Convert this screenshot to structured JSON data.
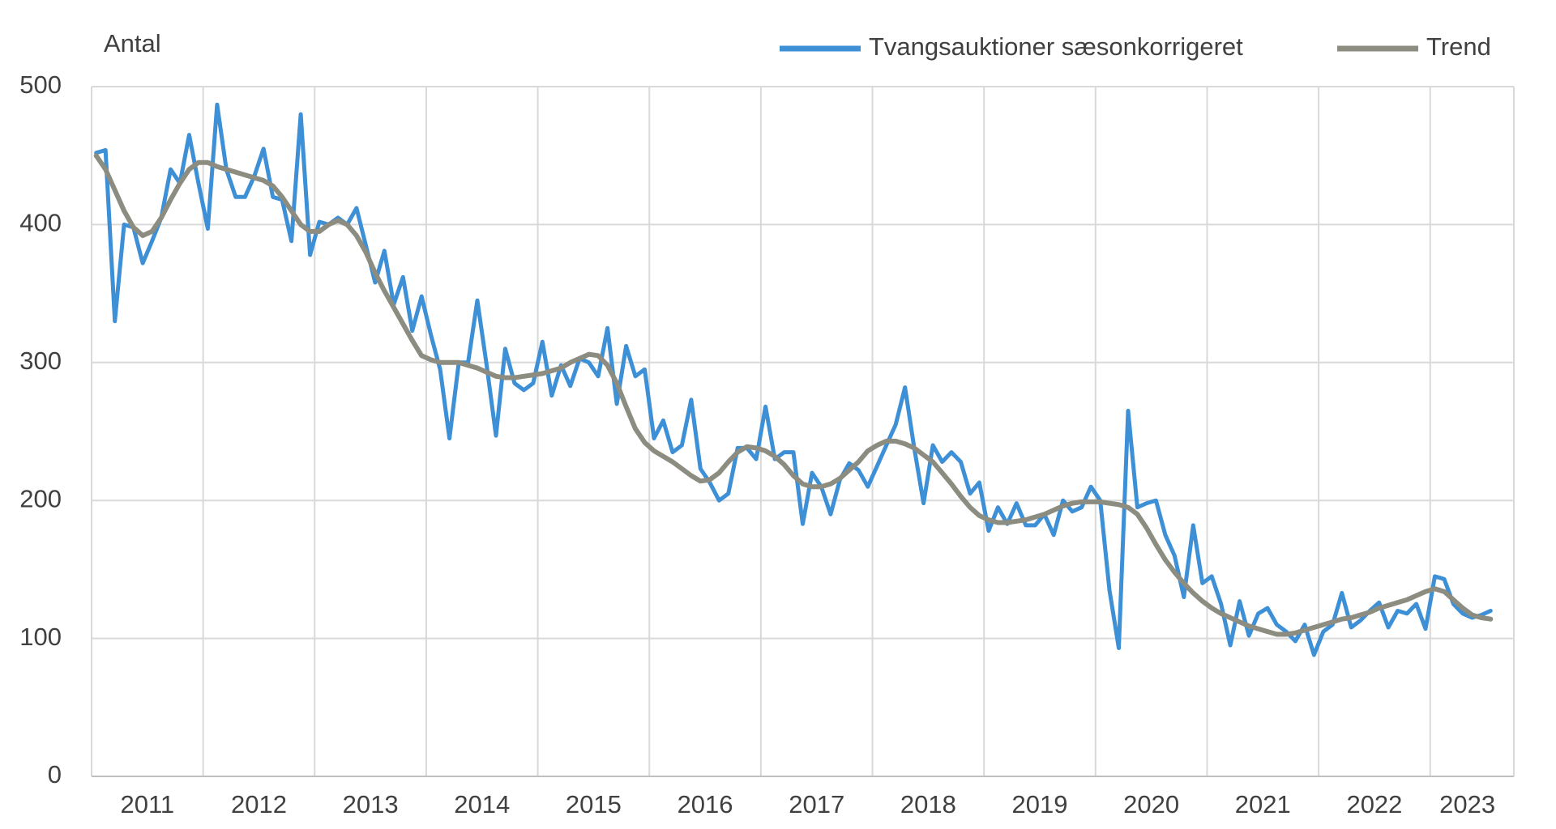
{
  "chart_data": {
    "type": "line",
    "y_axis_label": "Antal",
    "categories": [
      null,
      null,
      null,
      null,
      null,
      "2011",
      null,
      null,
      null,
      null,
      null,
      null,
      null,
      null,
      null,
      null,
      null,
      "2012",
      null,
      null,
      null,
      null,
      null,
      null,
      null,
      null,
      null,
      null,
      null,
      "2013",
      null,
      null,
      null,
      null,
      null,
      null,
      null,
      null,
      null,
      null,
      null,
      "2014",
      null,
      null,
      null,
      null,
      null,
      null,
      null,
      null,
      null,
      null,
      null,
      "2015",
      null,
      null,
      null,
      null,
      null,
      null,
      null,
      null,
      null,
      null,
      null,
      "2016",
      null,
      null,
      null,
      null,
      null,
      null,
      null,
      null,
      null,
      null,
      null,
      "2017",
      null,
      null,
      null,
      null,
      null,
      null,
      null,
      null,
      null,
      null,
      null,
      "2018",
      null,
      null,
      null,
      null,
      null,
      null,
      null,
      null,
      null,
      null,
      null,
      "2019",
      null,
      null,
      null,
      null,
      null,
      null,
      null,
      null,
      null,
      null,
      null,
      "2020",
      null,
      null,
      null,
      null,
      null,
      null,
      null,
      null,
      null,
      null,
      null,
      "2021",
      null,
      null,
      null,
      null,
      null,
      null,
      null,
      null,
      null,
      null,
      null,
      "2022",
      null,
      null,
      null,
      null,
      null,
      null,
      null,
      null,
      null,
      "2023",
      null,
      null,
      null,
      null,
      null
    ],
    "series": [
      {
        "name": "Tvangsauktioner sæsonkorrigeret",
        "color": "#3d8fd6",
        "values": [
          452,
          454,
          330,
          400,
          398,
          372,
          388,
          405,
          440,
          430,
          465,
          430,
          397,
          487,
          440,
          420,
          420,
          435,
          455,
          420,
          418,
          388,
          480,
          378,
          402,
          400,
          405,
          400,
          412,
          385,
          358,
          381,
          342,
          362,
          323,
          348,
          320,
          295,
          245,
          300,
          300,
          345,
          298,
          247,
          310,
          285,
          280,
          285,
          315,
          276,
          298,
          283,
          303,
          300,
          290,
          325,
          270,
          312,
          290,
          295,
          245,
          258,
          235,
          240,
          273,
          223,
          213,
          200,
          205,
          238,
          238,
          230,
          268,
          230,
          235,
          235,
          183,
          220,
          210,
          190,
          215,
          227,
          222,
          210,
          225,
          240,
          255,
          282,
          238,
          198,
          240,
          228,
          235,
          228,
          205,
          213,
          178,
          195,
          183,
          198,
          182,
          182,
          190,
          175,
          200,
          192,
          195,
          210,
          200,
          135,
          93,
          265,
          195,
          198,
          200,
          175,
          160,
          130,
          182,
          140,
          145,
          125,
          95,
          127,
          102,
          118,
          122,
          110,
          105,
          98,
          110,
          88,
          105,
          110,
          133,
          108,
          113,
          120,
          126,
          108,
          120,
          118,
          125,
          107,
          145,
          143,
          125,
          118,
          115,
          117,
          120,
          null,
          null
        ]
      },
      {
        "name": "Trend",
        "color": "#8c8c80",
        "values": [
          450,
          440,
          425,
          410,
          398,
          392,
          395,
          405,
          418,
          430,
          440,
          445,
          445,
          442,
          440,
          438,
          436,
          434,
          432,
          428,
          420,
          410,
          400,
          395,
          395,
          400,
          403,
          400,
          392,
          380,
          365,
          352,
          340,
          328,
          316,
          305,
          302,
          300,
          300,
          300,
          298,
          296,
          293,
          290,
          289,
          289,
          290,
          291,
          292,
          294,
          296,
          300,
          303,
          306,
          305,
          298,
          285,
          268,
          252,
          242,
          236,
          232,
          228,
          223,
          218,
          214,
          215,
          220,
          228,
          235,
          239,
          238,
          236,
          232,
          226,
          218,
          212,
          210,
          210,
          212,
          216,
          222,
          228,
          236,
          240,
          243,
          243,
          241,
          238,
          233,
          228,
          220,
          212,
          203,
          195,
          189,
          186,
          184,
          184,
          185,
          186,
          188,
          190,
          193,
          196,
          198,
          199,
          199,
          199,
          198,
          197,
          195,
          190,
          180,
          168,
          157,
          148,
          140,
          133,
          127,
          122,
          118,
          115,
          112,
          109,
          107,
          105,
          103,
          103,
          104,
          106,
          108,
          110,
          112,
          114,
          115,
          117,
          119,
          122,
          124,
          126,
          128,
          131,
          134,
          136,
          134,
          128,
          122,
          117,
          115,
          114,
          null,
          null
        ]
      }
    ],
    "ylim": [
      0,
      500
    ],
    "yticks": [
      0,
      100,
      200,
      300,
      400,
      500
    ],
    "grid": true
  }
}
